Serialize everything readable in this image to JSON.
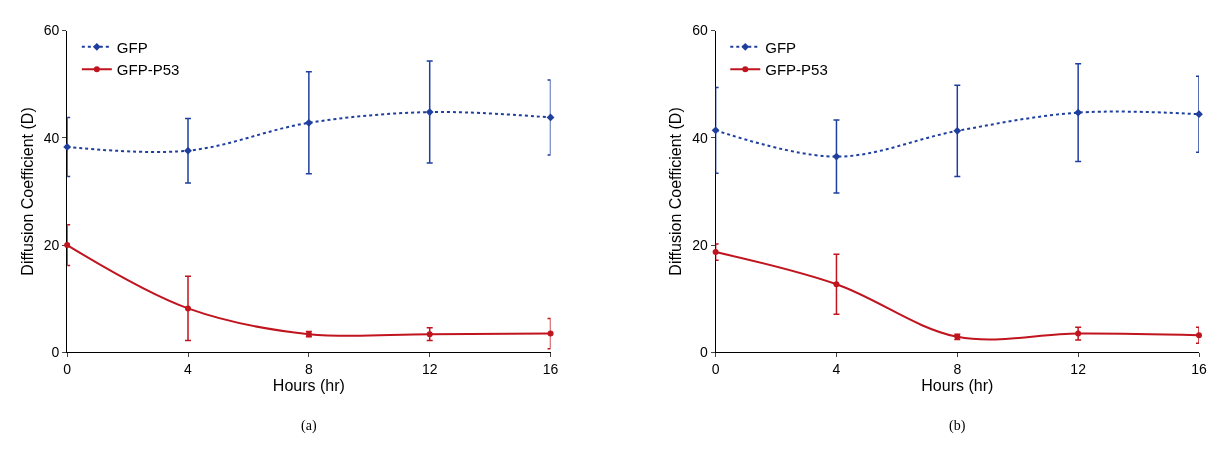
{
  "chart_data": [
    {
      "type": "line",
      "xlabel": "Hours (hr)",
      "ylabel": "Diffusion Coefficient (D)",
      "annotations": [
        "(a)"
      ],
      "x": [
        0,
        4,
        8,
        12,
        16
      ],
      "xlim": [
        0,
        16
      ],
      "xticks": [
        0,
        4,
        8,
        12,
        16
      ],
      "ylim": [
        0,
        60
      ],
      "yticks": [
        0,
        20,
        40,
        60
      ],
      "legend": "top left",
      "series": [
        {
          "name": "GFP",
          "color": "#1f3f9f",
          "marker": "diamond",
          "line_style": "dotted",
          "values": [
            38.3,
            37.6,
            42.8,
            44.8,
            43.8
          ],
          "errors": [
            5.5,
            6,
            9.5,
            9.5,
            7
          ]
        },
        {
          "name": "GFP-P53",
          "color": "#c0141e",
          "marker": "circle",
          "line_style": "solid",
          "values": [
            20,
            8.2,
            3.4,
            3.4,
            3.5
          ],
          "errors": [
            3.8,
            6,
            0.5,
            1.2,
            2.8
          ]
        }
      ]
    },
    {
      "type": "line",
      "xlabel": "Hours (hr)",
      "ylabel": "Diffusion Coefficient (D)",
      "annotations": [
        "(b)"
      ],
      "x": [
        0,
        4,
        8,
        12,
        16
      ],
      "xlim": [
        0,
        16
      ],
      "xticks": [
        0,
        4,
        8,
        12,
        16
      ],
      "ylim": [
        0,
        60
      ],
      "yticks": [
        0,
        20,
        40,
        60
      ],
      "legend": "top left",
      "series": [
        {
          "name": "GFP",
          "color": "#1f3f9f",
          "marker": "diamond",
          "line_style": "dotted",
          "values": [
            41.4,
            36.5,
            41.3,
            44.7,
            44.4
          ],
          "errors": [
            8,
            6.8,
            8.5,
            9.1,
            7.1
          ]
        },
        {
          "name": "GFP-P53",
          "color": "#c0141e",
          "marker": "circle",
          "line_style": "solid",
          "values": [
            18.7,
            12.7,
            2.9,
            3.5,
            3.2
          ],
          "errors": [
            1.5,
            5.6,
            0.5,
            1.2,
            1.5
          ]
        }
      ]
    }
  ]
}
